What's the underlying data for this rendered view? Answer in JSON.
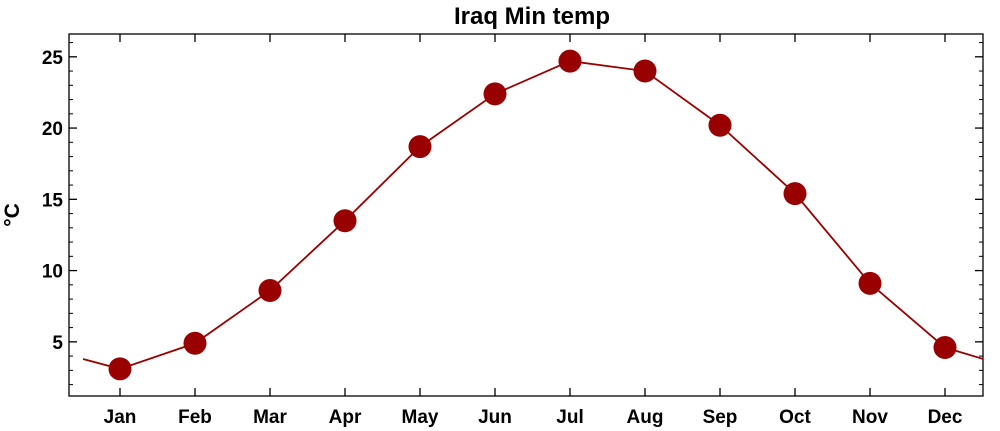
{
  "chart_data": {
    "type": "line",
    "title": "Iraq Min temp",
    "xlabel": "",
    "ylabel": "°C",
    "categories": [
      "Jan",
      "Feb",
      "Mar",
      "Apr",
      "May",
      "Jun",
      "Jul",
      "Aug",
      "Sep",
      "Oct",
      "Nov",
      "Dec"
    ],
    "series": [
      {
        "values": [
          3.1,
          4.9,
          8.6,
          13.5,
          18.7,
          22.4,
          24.7,
          24.0,
          20.2,
          15.4,
          9.1,
          4.6
        ]
      }
    ],
    "edge_values": {
      "left": 3.8,
      "right": 3.8
    },
    "yticks": [
      5,
      10,
      15,
      20,
      25
    ],
    "ylim": [
      1.2,
      26.6
    ],
    "grid": false,
    "colors": {
      "series": "#990000",
      "axis": "#000000"
    }
  }
}
